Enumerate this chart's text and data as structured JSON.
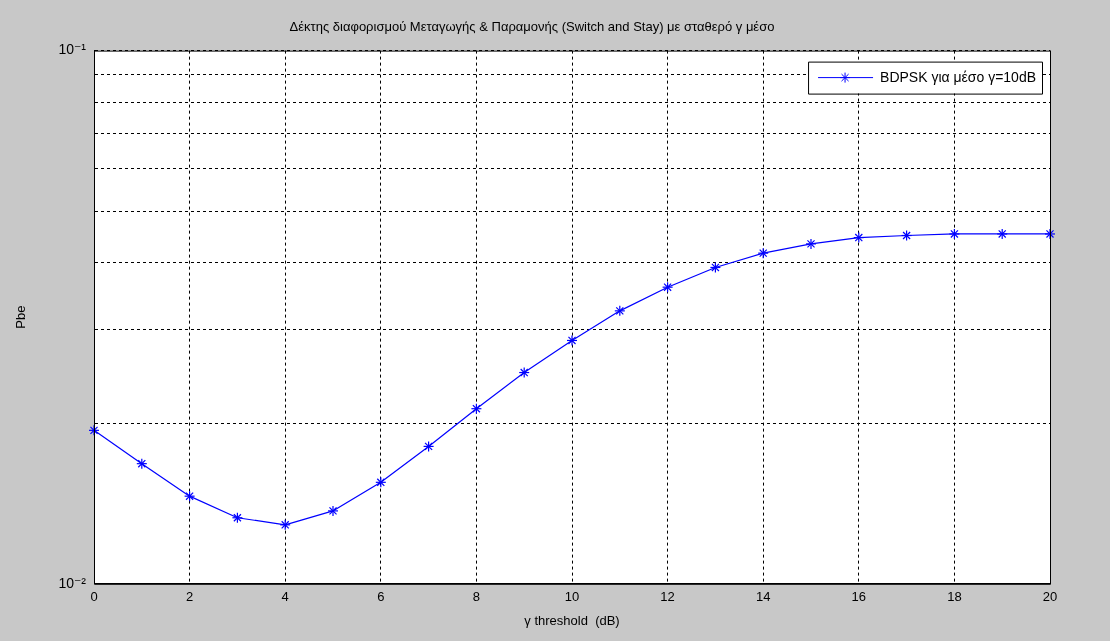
{
  "chart_data": {
    "type": "line",
    "title": "Δέκτης διαφορισμού Μεταγωγής & Παραμονής (Switch and Stay) με σταθερό γ μέσο",
    "xlabel": "γ threshold  (dB)",
    "ylabel": "Pbe",
    "x": [
      0,
      1,
      2,
      3,
      4,
      5,
      6,
      7,
      8,
      9,
      10,
      11,
      12,
      13,
      14,
      15,
      16,
      17,
      18,
      19,
      20
    ],
    "series": [
      {
        "name": "BDPSK για μέσο γ=10dB",
        "color": "#0000ff",
        "values": [
          0.0194,
          0.0168,
          0.0146,
          0.0133,
          0.0129,
          0.0137,
          0.0155,
          0.0181,
          0.0213,
          0.0249,
          0.0286,
          0.0325,
          0.036,
          0.0392,
          0.0417,
          0.0434,
          0.0446,
          0.045,
          0.0453,
          0.0453,
          0.0453
        ]
      }
    ],
    "xlim": [
      0,
      20
    ],
    "xticks": [
      0,
      2,
      4,
      6,
      8,
      10,
      12,
      14,
      16,
      18,
      20
    ],
    "ylim": [
      0.01,
      0.1
    ],
    "yticks": [
      {
        "value": 0.01,
        "label": "10⁻²"
      },
      {
        "value": 0.02,
        "label": null
      },
      {
        "value": 0.03,
        "label": null
      },
      {
        "value": 0.04,
        "label": null
      },
      {
        "value": 0.05,
        "label": null
      },
      {
        "value": 0.06,
        "label": null
      },
      {
        "value": 0.07,
        "label": null
      },
      {
        "value": 0.08,
        "label": null
      },
      {
        "value": 0.09,
        "label": null
      },
      {
        "value": 0.1,
        "label": "10⁻¹"
      }
    ],
    "log": "y",
    "grid": true,
    "legend": "top right",
    "marker": "cross",
    "line_style": "solid"
  }
}
